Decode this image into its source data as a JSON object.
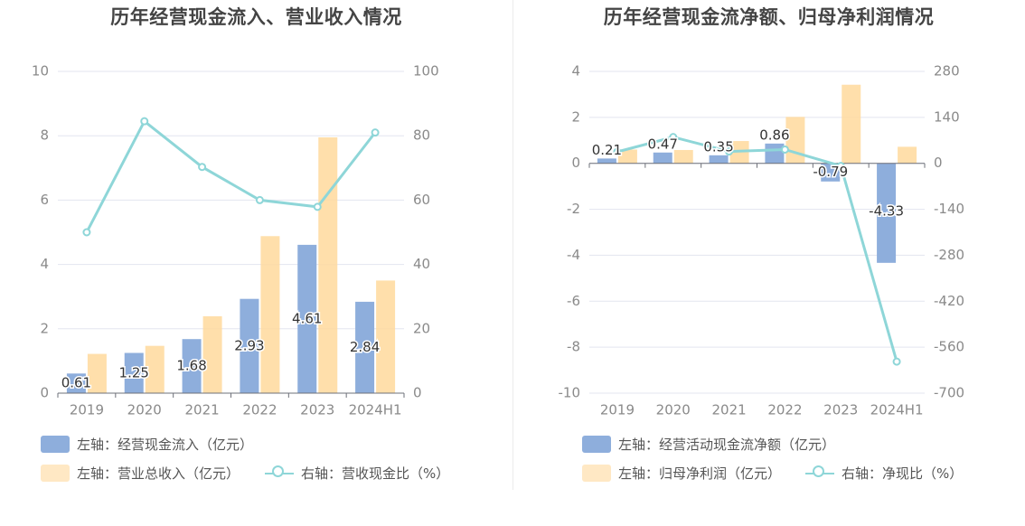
{
  "chart_data": [
    {
      "type": "bar",
      "title": "历年经营现金流入、营业收入情况",
      "categories": [
        "2019",
        "2020",
        "2021",
        "2022",
        "2023",
        "2024H1"
      ],
      "left_axis": {
        "min": 0,
        "max": 10,
        "ticks": [
          "0",
          "2",
          "4",
          "6",
          "8",
          "10"
        ]
      },
      "right_axis": {
        "min": 0,
        "max": 100,
        "ticks": [
          "0",
          "20",
          "40",
          "60",
          "80",
          "100"
        ]
      },
      "grid": true,
      "legend_position": "bottom-left",
      "series": [
        {
          "name": "左轴：经营现金流入（亿元）",
          "type": "bar",
          "axis": "left",
          "color": "#8eaedc",
          "values": [
            0.61,
            1.25,
            1.68,
            2.93,
            4.61,
            2.84
          ],
          "labels": [
            "0.61",
            "1.25",
            "1.68",
            "2.93",
            "4.61",
            "2.84"
          ]
        },
        {
          "name": "左轴：营业总收入（亿元）",
          "type": "bar",
          "axis": "left",
          "color": "#ffd99c",
          "values": [
            1.22,
            1.47,
            2.39,
            4.88,
            7.95,
            3.5
          ]
        },
        {
          "name": "右轴：营收现金比（%）",
          "type": "line",
          "axis": "right",
          "color": "#8ed6d8",
          "values": [
            50,
            84.5,
            70.3,
            60,
            57.9,
            81
          ]
        }
      ]
    },
    {
      "type": "bar",
      "title": "历年经营现金流净额、归母净利润情况",
      "categories": [
        "2019",
        "2020",
        "2021",
        "2022",
        "2023",
        "2024H1"
      ],
      "left_axis": {
        "min": -10,
        "max": 4,
        "ticks": [
          "-10",
          "-8",
          "-6",
          "-4",
          "-2",
          "0",
          "2",
          "4"
        ]
      },
      "right_axis": {
        "min": -700,
        "max": 280,
        "ticks": [
          "-700",
          "-560",
          "-420",
          "-280",
          "-140",
          "0",
          "140",
          "280"
        ]
      },
      "grid": true,
      "legend_position": "bottom-left",
      "series": [
        {
          "name": "左轴：经营活动现金流净额（亿元）",
          "type": "bar",
          "axis": "left",
          "color": "#8eaedc",
          "values": [
            0.21,
            0.47,
            0.35,
            0.86,
            -0.79,
            -4.33
          ],
          "labels": [
            "0.21",
            "0.47",
            "0.35",
            "0.86",
            "-0.79",
            "-4.33"
          ]
        },
        {
          "name": "左轴：归母净利润（亿元）",
          "type": "bar",
          "axis": "left",
          "color": "#ffd99c",
          "values": [
            0.6,
            0.58,
            0.97,
            2.02,
            3.42,
            0.72
          ]
        },
        {
          "name": "右轴：净现比（%）",
          "type": "line",
          "axis": "right",
          "color": "#8ed6d8",
          "values": [
            35,
            80,
            36,
            42,
            -8,
            -604
          ]
        }
      ]
    }
  ]
}
